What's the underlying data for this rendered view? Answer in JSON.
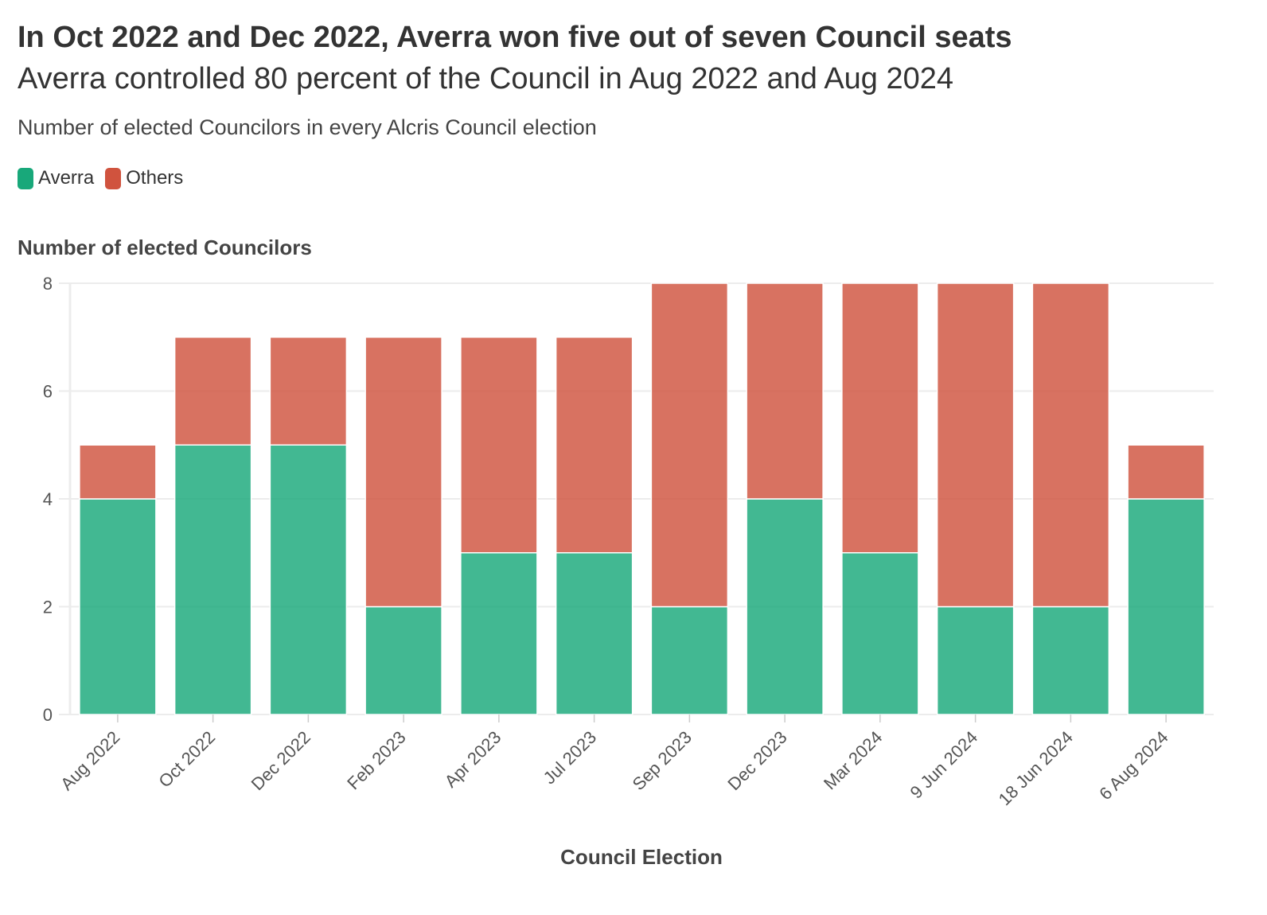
{
  "chart_data": {
    "type": "bar",
    "stacked": true,
    "title": "In Oct 2022 and Dec 2022, Averra won five out of seven Council seats",
    "subtitle": "Averra controlled 80 percent of the Council in Aug 2022 and Aug 2024",
    "description": "Number of elected Councilors in every Alcris Council election",
    "xlabel": "Council Election",
    "ylabel": "Number of elected Councilors",
    "ylim": [
      0,
      8
    ],
    "yticks": [
      0,
      2,
      4,
      6,
      8
    ],
    "grid": true,
    "legend_position": "top-left",
    "categories": [
      "Aug 2022",
      "Oct 2022",
      "Dec 2022",
      "Feb 2023",
      "Apr 2023",
      "Jul 2023",
      "Sep 2023",
      "Dec 2023",
      "Mar 2024",
      "9 Jun 2024",
      "18 Jun 2024",
      "6 Aug 2024"
    ],
    "series": [
      {
        "name": "Averra",
        "color": "#18a87a",
        "values": [
          4,
          5,
          5,
          2,
          3,
          3,
          2,
          4,
          3,
          2,
          2,
          4
        ]
      },
      {
        "name": "Others",
        "color": "#d0533e",
        "values": [
          1,
          2,
          2,
          5,
          4,
          4,
          6,
          4,
          5,
          6,
          6,
          1
        ]
      }
    ]
  }
}
